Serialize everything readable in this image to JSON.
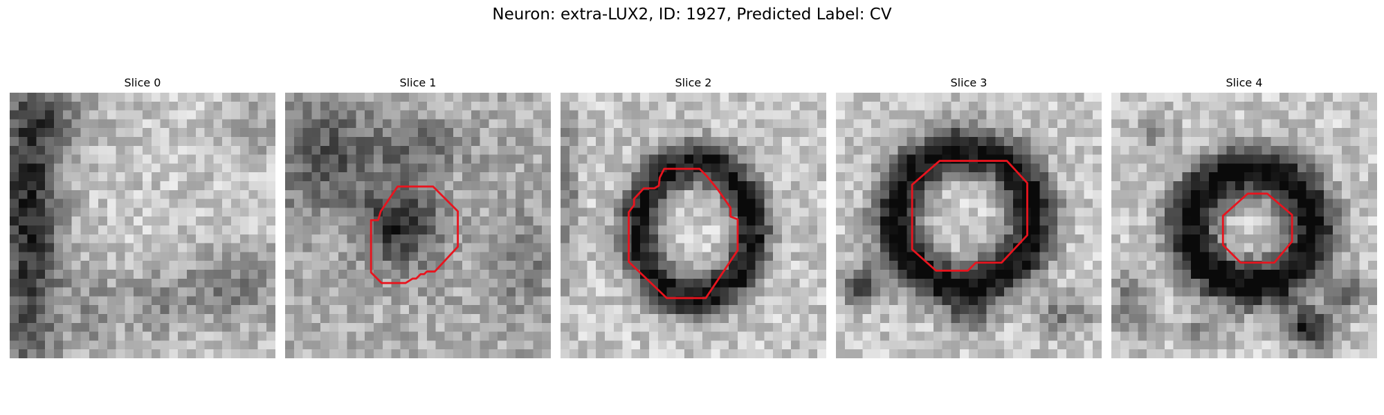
{
  "figure": {
    "title": "Neuron: extra-LUX2, ID: 1927, Predicted Label: CV"
  },
  "panels": [
    {
      "title": "Slice 0",
      "style": "bright",
      "dark_features": [
        {
          "cx": 2.2,
          "cy": 14,
          "rx": 4.2,
          "ry": 22,
          "strength": 0.62
        },
        {
          "cx": 9.5,
          "cy": 25,
          "rx": 3,
          "ry": 6,
          "strength": 0.2
        },
        {
          "cx": 16,
          "cy": 24,
          "rx": 4,
          "ry": 4,
          "strength": 0.22
        },
        {
          "cx": 25,
          "cy": 22,
          "rx": 7,
          "ry": 5,
          "strength": 0.3
        },
        {
          "cx": 28,
          "cy": 4,
          "rx": 4,
          "ry": 4,
          "strength": 0.15
        },
        {
          "cx": 6,
          "cy": 3,
          "rx": 5,
          "ry": 4,
          "strength": 0.2
        }
      ],
      "outline": []
    },
    {
      "title": "Slice 1",
      "style": "medium",
      "dark_features": [
        {
          "cx": 13,
          "cy": 15,
          "rx": 5,
          "ry": 5,
          "strength": 0.5
        },
        {
          "cx": 4,
          "cy": 7,
          "rx": 7,
          "ry": 7,
          "strength": 0.35
        },
        {
          "cx": 15,
          "cy": 6,
          "rx": 6,
          "ry": 3,
          "strength": 0.25
        },
        {
          "cx": 27,
          "cy": 19,
          "rx": 4,
          "ry": 6,
          "strength": 0.22
        }
      ],
      "outline": [
        [
          12.7,
          10.6
        ],
        [
          16.7,
          10.6
        ],
        [
          19.5,
          13.4
        ],
        [
          19.5,
          17.4
        ],
        [
          16.9,
          20.2
        ],
        [
          16,
          20.2
        ],
        [
          15.7,
          20.5
        ],
        [
          15.3,
          20.5
        ],
        [
          14.8,
          21
        ],
        [
          14.4,
          21
        ],
        [
          13.6,
          21.5
        ],
        [
          12.1,
          21.5
        ],
        [
          10.9,
          21.5
        ],
        [
          9.7,
          20.3
        ],
        [
          9.7,
          14.4
        ],
        [
          10.5,
          14.4
        ],
        [
          10.8,
          13.4
        ]
      ]
    },
    {
      "title": "Slice 2",
      "style": "bright",
      "ring": {
        "cx": 15.2,
        "cy": 15.5,
        "rx": 6.4,
        "ry": 7.5,
        "w": 1.7,
        "strength": 0.72
      },
      "dark_features": [
        {
          "cx": 0.8,
          "cy": 11,
          "rx": 1.3,
          "ry": 12,
          "strength": 0.3
        }
      ],
      "outline": [
        [
          11.7,
          8.6
        ],
        [
          15.7,
          8.6
        ],
        [
          16.5,
          9.4
        ],
        [
          17.8,
          11
        ],
        [
          19.2,
          13
        ],
        [
          19.2,
          14
        ],
        [
          20,
          14.3
        ],
        [
          20,
          17.8
        ],
        [
          16.4,
          23.2
        ],
        [
          14.9,
          23.2
        ],
        [
          13.5,
          23.2
        ],
        [
          12,
          23.2
        ],
        [
          7.7,
          19.1
        ],
        [
          7.7,
          13.5
        ],
        [
          8.3,
          12.7
        ],
        [
          8.3,
          12
        ],
        [
          9.4,
          10.8
        ],
        [
          10.6,
          10.8
        ],
        [
          11.1,
          10.5
        ],
        [
          11.2,
          9.6
        ]
      ]
    },
    {
      "title": "Slice 3",
      "style": "bright",
      "ring": {
        "cx": 14.5,
        "cy": 14.2,
        "rx": 7.6,
        "ry": 7.6,
        "w": 2,
        "strength": 0.75
      },
      "dark_features": [
        {
          "cx": 3,
          "cy": 21.8,
          "rx": 2.5,
          "ry": 2.5,
          "strength": 0.5
        },
        {
          "cx": 15,
          "cy": 25.5,
          "rx": 2.5,
          "ry": 1.8,
          "strength": 0.3
        },
        {
          "cx": 26,
          "cy": 25,
          "rx": 3.5,
          "ry": 2.5,
          "strength": 0.3
        }
      ],
      "outline": [
        [
          11.7,
          7.7
        ],
        [
          19.3,
          7.7
        ],
        [
          21.6,
          10.2
        ],
        [
          21.6,
          16.1
        ],
        [
          18.7,
          19.2
        ],
        [
          15.8,
          19.2
        ],
        [
          14.9,
          20.1
        ],
        [
          12.8,
          20.1
        ],
        [
          11.3,
          20.1
        ],
        [
          8.6,
          17.7
        ],
        [
          8.6,
          10.4
        ]
      ]
    },
    {
      "title": "Slice 4",
      "style": "bright",
      "ring": {
        "cx": 15.8,
        "cy": 15.2,
        "rx": 6.8,
        "ry": 6.4,
        "w": 2.1,
        "strength": 0.78
      },
      "dark_features": [
        {
          "cx": 22.5,
          "cy": 26.5,
          "rx": 3,
          "ry": 2.5,
          "strength": 0.7
        },
        {
          "cx": 27,
          "cy": 22.5,
          "rx": 2.2,
          "ry": 2,
          "strength": 0.5
        },
        {
          "cx": 2,
          "cy": 24,
          "rx": 2,
          "ry": 4,
          "strength": 0.35
        },
        {
          "cx": 10.5,
          "cy": 27,
          "rx": 4,
          "ry": 1.5,
          "strength": 0.25
        },
        {
          "cx": 5,
          "cy": 5,
          "rx": 2.5,
          "ry": 2.5,
          "strength": 0.2
        }
      ],
      "outline": [
        [
          15.4,
          11.4
        ],
        [
          17.6,
          11.4
        ],
        [
          20.4,
          13.8
        ],
        [
          20.4,
          16.8
        ],
        [
          18.4,
          19.2
        ],
        [
          16.4,
          19.2
        ],
        [
          14.6,
          19.2
        ],
        [
          12.6,
          17.2
        ],
        [
          12.6,
          13.9
        ]
      ]
    }
  ],
  "colors": {
    "outline": "#e8141e",
    "background": "#ffffff",
    "text": "#000000"
  }
}
